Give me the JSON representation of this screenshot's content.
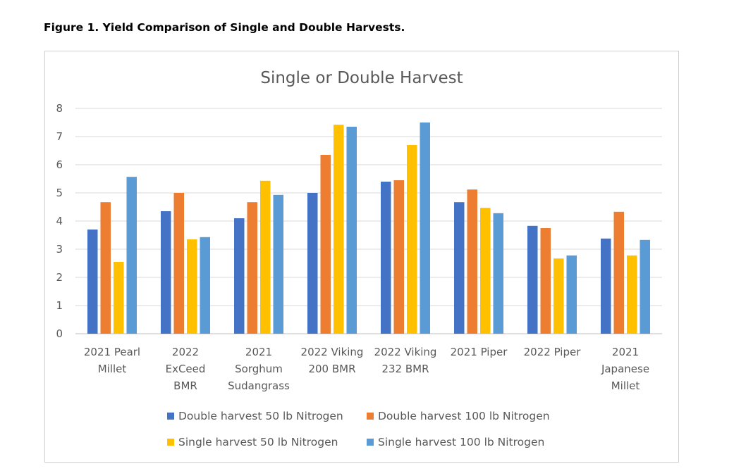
{
  "figure_caption": "Figure 1. Yield Comparison of Single and Double Harvests.",
  "chart_data": {
    "type": "bar",
    "title": "Single or Double Harvest",
    "xlabel": "",
    "ylabel": "",
    "ylim": [
      0,
      8
    ],
    "yticks": [
      0,
      1,
      2,
      3,
      4,
      5,
      6,
      7,
      8
    ],
    "grid": true,
    "legend_position": "bottom",
    "categories": [
      [
        "2021 Pearl",
        "Millet"
      ],
      [
        "2022",
        "ExCeed",
        "BMR"
      ],
      [
        "2021",
        "Sorghum",
        "Sudangrass"
      ],
      [
        "2022 Viking",
        "200 BMR"
      ],
      [
        "2022 Viking",
        "232 BMR"
      ],
      [
        "2021 Piper"
      ],
      [
        "2022 Piper"
      ],
      [
        "2021",
        "Japanese",
        "Millet"
      ]
    ],
    "series": [
      {
        "name": "Double harvest  50 lb Nitrogen",
        "color": "#4472C4",
        "values": [
          3.7,
          4.35,
          4.1,
          5.0,
          5.4,
          4.67,
          3.83,
          3.38
        ]
      },
      {
        "name": "Double harvest  100 lb Nitrogen",
        "color": "#ED7D31",
        "values": [
          4.67,
          5.0,
          4.67,
          6.35,
          5.45,
          5.12,
          3.75,
          4.33
        ]
      },
      {
        "name": "Single harvest 50 lb Nitrogen",
        "color": "#FFC000",
        "values": [
          2.55,
          3.35,
          5.43,
          7.42,
          6.7,
          4.47,
          2.67,
          2.78
        ]
      },
      {
        "name": "Single harvest 100 lb Nitrogen",
        "color": "#5B9BD5",
        "values": [
          5.57,
          3.43,
          4.93,
          7.35,
          7.5,
          4.28,
          2.78,
          3.33
        ]
      }
    ]
  }
}
